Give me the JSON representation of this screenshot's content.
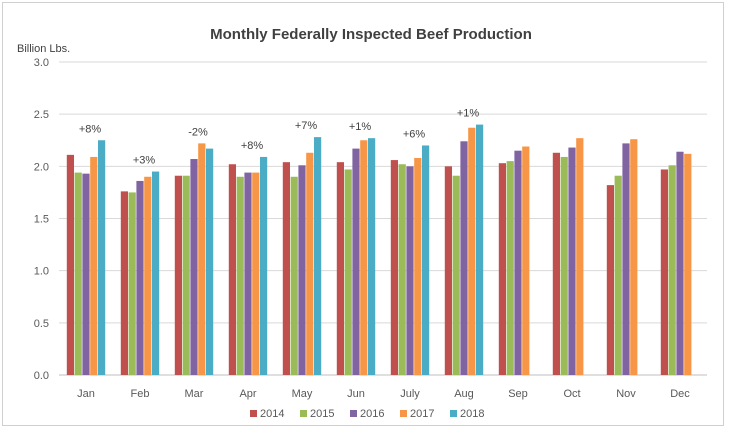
{
  "chart_data": {
    "type": "bar",
    "title": "Monthly Federally Inspected Beef Production",
    "ylabel": "Billion Lbs.",
    "xlabel": "",
    "ylim": [
      0,
      3.0
    ],
    "yticks": [
      "0.0",
      "0.5",
      "1.0",
      "1.5",
      "2.0",
      "2.5",
      "3.0"
    ],
    "grid": true,
    "legend_position": "bottom",
    "categories": [
      "Jan",
      "Feb",
      "Mar",
      "Apr",
      "May",
      "Jun",
      "July",
      "Aug",
      "Sep",
      "Oct",
      "Nov",
      "Dec"
    ],
    "series": [
      {
        "name": "2014",
        "color": "#c0504d",
        "values": [
          2.11,
          1.76,
          1.91,
          2.02,
          2.04,
          2.04,
          2.06,
          2.0,
          2.03,
          2.13,
          1.82,
          1.97
        ]
      },
      {
        "name": "2015",
        "color": "#9bbb59",
        "values": [
          1.94,
          1.75,
          1.91,
          1.9,
          1.9,
          1.97,
          2.02,
          1.91,
          2.05,
          2.09,
          1.91,
          2.01
        ]
      },
      {
        "name": "2016",
        "color": "#8064a2",
        "values": [
          1.93,
          1.86,
          2.07,
          1.94,
          2.01,
          2.17,
          2.0,
          2.24,
          2.15,
          2.18,
          2.22,
          2.14
        ]
      },
      {
        "name": "2017",
        "color": "#f79646",
        "values": [
          2.09,
          1.9,
          2.22,
          1.94,
          2.13,
          2.25,
          2.08,
          2.37,
          2.19,
          2.27,
          2.26,
          2.12
        ]
      },
      {
        "name": "2018",
        "color": "#4bacc6",
        "values": [
          2.25,
          1.95,
          2.17,
          2.09,
          2.28,
          2.27,
          2.2,
          2.4,
          null,
          null,
          null,
          null
        ]
      }
    ],
    "annotations": [
      {
        "category": "Jan",
        "text": "+8%"
      },
      {
        "category": "Feb",
        "text": "+3%"
      },
      {
        "category": "Mar",
        "text": "-2%"
      },
      {
        "category": "Apr",
        "text": "+8%"
      },
      {
        "category": "May",
        "text": "+7%"
      },
      {
        "category": "Jun",
        "text": "+1%"
      },
      {
        "category": "July",
        "text": "+6%"
      },
      {
        "category": "Aug",
        "text": "+1%"
      }
    ]
  }
}
